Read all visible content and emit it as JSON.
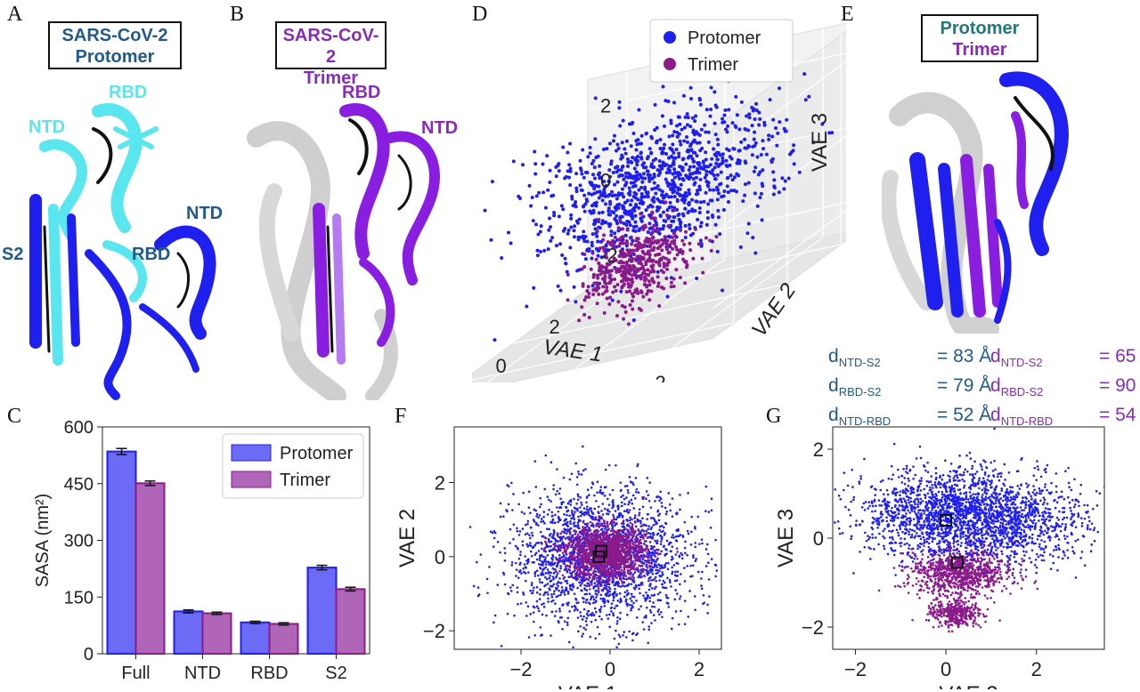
{
  "panels": {
    "a": {
      "letter": "A",
      "title_line1": "SARS-CoV-2",
      "title_line2": "Protomer",
      "labels": {
        "rbd": "RBD",
        "ntd1": "NTD",
        "ntd2": "NTD",
        "s2": "S2",
        "rbd2": "RBD"
      }
    },
    "b": {
      "letter": "B",
      "title_line1": "SARS-CoV-2",
      "title_line2": "Trimer",
      "labels": {
        "rbd": "RBD",
        "ntd": "NTD"
      }
    },
    "c": {
      "letter": "C"
    },
    "d": {
      "letter": "D"
    },
    "e": {
      "letter": "E",
      "title_line1": "Protomer",
      "title_line2": "Trimer"
    },
    "f": {
      "letter": "F"
    },
    "g": {
      "letter": "G"
    }
  },
  "colors": {
    "protomer": "#1f1ff0",
    "trimer": "#8b1a8b",
    "protomer_title": "#1f5a8c",
    "trimer_title": "#8a2bb8",
    "cyan": "#59e6ee",
    "dist_protomer": "#1f5a8c",
    "dist_trimer": "#8a2bb8",
    "protomer_bar": "#6b6bf5",
    "trimer_bar": "#b066b8"
  },
  "distances": {
    "protomer": [
      {
        "sub": "NTD-S2",
        "value": "= 83 Å"
      },
      {
        "sub": "RBD-S2",
        "value": "= 79 Å"
      },
      {
        "sub": "NTD-RBD",
        "value": "= 52 Å"
      }
    ],
    "trimer": [
      {
        "sub": "NTD-S2",
        "value": "= 65 Å"
      },
      {
        "sub": "RBD-S2",
        "value": "= 90 Å"
      },
      {
        "sub": "NTD-RBD",
        "value": "= 54 Å"
      }
    ],
    "d_letter": "d"
  },
  "chart_data": [
    {
      "id": "C",
      "type": "bar",
      "categories": [
        "Full",
        "NTD",
        "RBD",
        "S2"
      ],
      "series": [
        {
          "name": "Protomer",
          "values": [
            535,
            112,
            83,
            228
          ],
          "errors": [
            8,
            4,
            3,
            6
          ]
        },
        {
          "name": "Trimer",
          "values": [
            451,
            107,
            79,
            171
          ],
          "errors": [
            6,
            3,
            3,
            5
          ]
        }
      ],
      "ylabel": "SASA (nm²)",
      "ylim": [
        0,
        600
      ],
      "yticks": [
        0,
        150,
        300,
        450,
        600
      ],
      "legend": "top-right"
    },
    {
      "id": "D",
      "type": "scatter",
      "dims": 3,
      "xlabel": "VAE 1",
      "ylabel": "VAE 2",
      "zlabel": "VAE 3",
      "xticks": [
        -2,
        0,
        2
      ],
      "yticks": [
        -2,
        0,
        2
      ],
      "zticks": [
        -2,
        0,
        2
      ],
      "series": [
        {
          "name": "Protomer",
          "center": [
            0,
            0.3,
            0.4
          ],
          "spread": [
            1.1,
            1.0,
            0.9
          ]
        },
        {
          "name": "Trimer",
          "center": [
            0.3,
            0,
            -1.4
          ],
          "spread": [
            0.5,
            0.4,
            0.5
          ]
        }
      ],
      "legend": "top-right"
    },
    {
      "id": "F",
      "type": "scatter",
      "xlabel": "VAE 1",
      "ylabel": "VAE 2",
      "xlim": [
        -3.5,
        2.5
      ],
      "ylim": [
        -2.5,
        3.5
      ],
      "xticks": [
        -2,
        0,
        2
      ],
      "yticks": [
        -2,
        0,
        2
      ],
      "series": [
        {
          "name": "Protomer",
          "center": [
            -0.2,
            0.0
          ],
          "spread": [
            1.0,
            0.9
          ]
        },
        {
          "name": "Trimer",
          "center": [
            -0.1,
            0.1
          ],
          "spread": [
            0.45,
            0.35
          ]
        }
      ],
      "markers": [
        [
          -0.2,
          0.15
        ],
        [
          -0.25,
          0.0
        ]
      ]
    },
    {
      "id": "G",
      "type": "scatter",
      "xlabel": "VAE 2",
      "ylabel": "VAE 3",
      "xlim": [
        -2.5,
        3.5
      ],
      "ylim": [
        -2.5,
        2.5
      ],
      "xticks": [
        -2,
        0,
        2
      ],
      "yticks": [
        -2,
        0,
        2
      ],
      "series": [
        {
          "name": "Protomer",
          "center": [
            0.2,
            0.55
          ],
          "spread": [
            1.0,
            0.5
          ]
        },
        {
          "name": "Trimer",
          "center": [
            0.35,
            -0.8
          ],
          "spread": [
            0.55,
            0.25
          ]
        }
      ],
      "markers": [
        [
          0.0,
          0.4
        ],
        [
          0.25,
          -0.55
        ]
      ]
    }
  ]
}
